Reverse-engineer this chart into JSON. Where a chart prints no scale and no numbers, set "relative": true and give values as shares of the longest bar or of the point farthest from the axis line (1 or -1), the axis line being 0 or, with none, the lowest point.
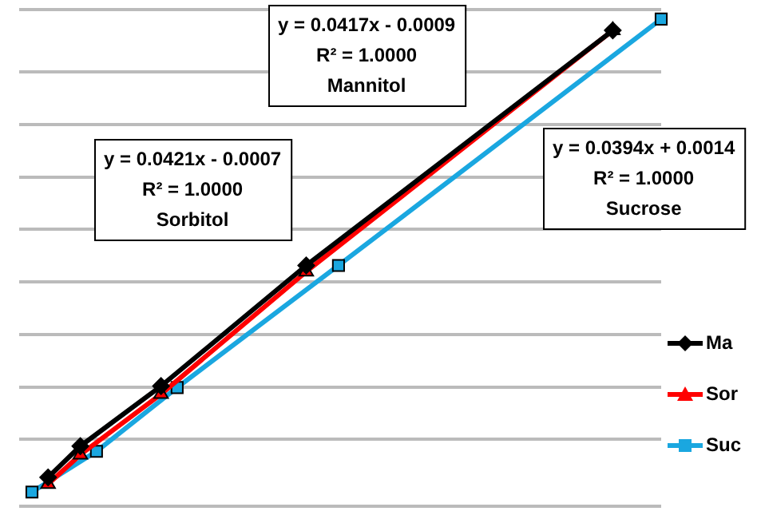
{
  "chart_data": {
    "type": "line",
    "relative": true,
    "grid": "y",
    "legend": "right",
    "line_style": "solid",
    "annotations": [
      "y = 0.0417x - 0.0009\nR² = 1.0000\nMannitol",
      "y = 0.0421x - 0.0007\nR² = 1.0000\nSorbitol",
      "y = 0.0394x + 0.0014\nR² = 1.0000\nSucrose"
    ],
    "categories": [
      null,
      null,
      null,
      null,
      null,
      null,
      null,
      null,
      null,
      null,
      null,
      null,
      null,
      null,
      null,
      null,
      null,
      null,
      null,
      null,
      null,
      null,
      null,
      null,
      null,
      null,
      null,
      null,
      null,
      null,
      null,
      null,
      null,
      null,
      null,
      null,
      null,
      null,
      null,
      null
    ],
    "series": [
      {
        "name": "Ma",
        "color": "#000000",
        "marker": "diamond",
        "values": [
          null,
          0.031,
          null,
          0.097,
          null,
          null,
          null,
          null,
          0.224,
          null,
          null,
          null,
          null,
          null,
          null,
          null,
          null,
          0.479,
          null,
          null,
          null,
          null,
          null,
          null,
          null,
          null,
          null,
          null,
          null,
          null,
          null,
          null,
          null,
          null,
          null,
          null,
          0.976,
          null,
          null,
          null
        ]
      },
      {
        "name": "Sor",
        "color": "#ff0000",
        "marker": "triangle",
        "values": [
          null,
          0.017,
          null,
          0.079,
          null,
          null,
          null,
          null,
          0.207,
          null,
          null,
          null,
          null,
          null,
          null,
          null,
          null,
          0.466,
          null,
          null,
          null,
          null,
          null,
          null,
          null,
          null,
          null,
          null,
          null,
          null,
          null,
          null,
          null,
          null,
          null,
          null,
          0.976,
          null,
          null,
          null
        ]
      },
      {
        "name": "Suc",
        "color": "#1aa7e0",
        "marker": "square",
        "values": [
          0,
          null,
          null,
          null,
          0.086,
          null,
          null,
          null,
          null,
          0.221,
          null,
          null,
          null,
          null,
          null,
          null,
          null,
          null,
          null,
          0.479,
          null,
          null,
          null,
          null,
          null,
          null,
          null,
          null,
          null,
          null,
          null,
          null,
          null,
          null,
          null,
          null,
          null,
          null,
          null,
          1
        ]
      }
    ]
  }
}
